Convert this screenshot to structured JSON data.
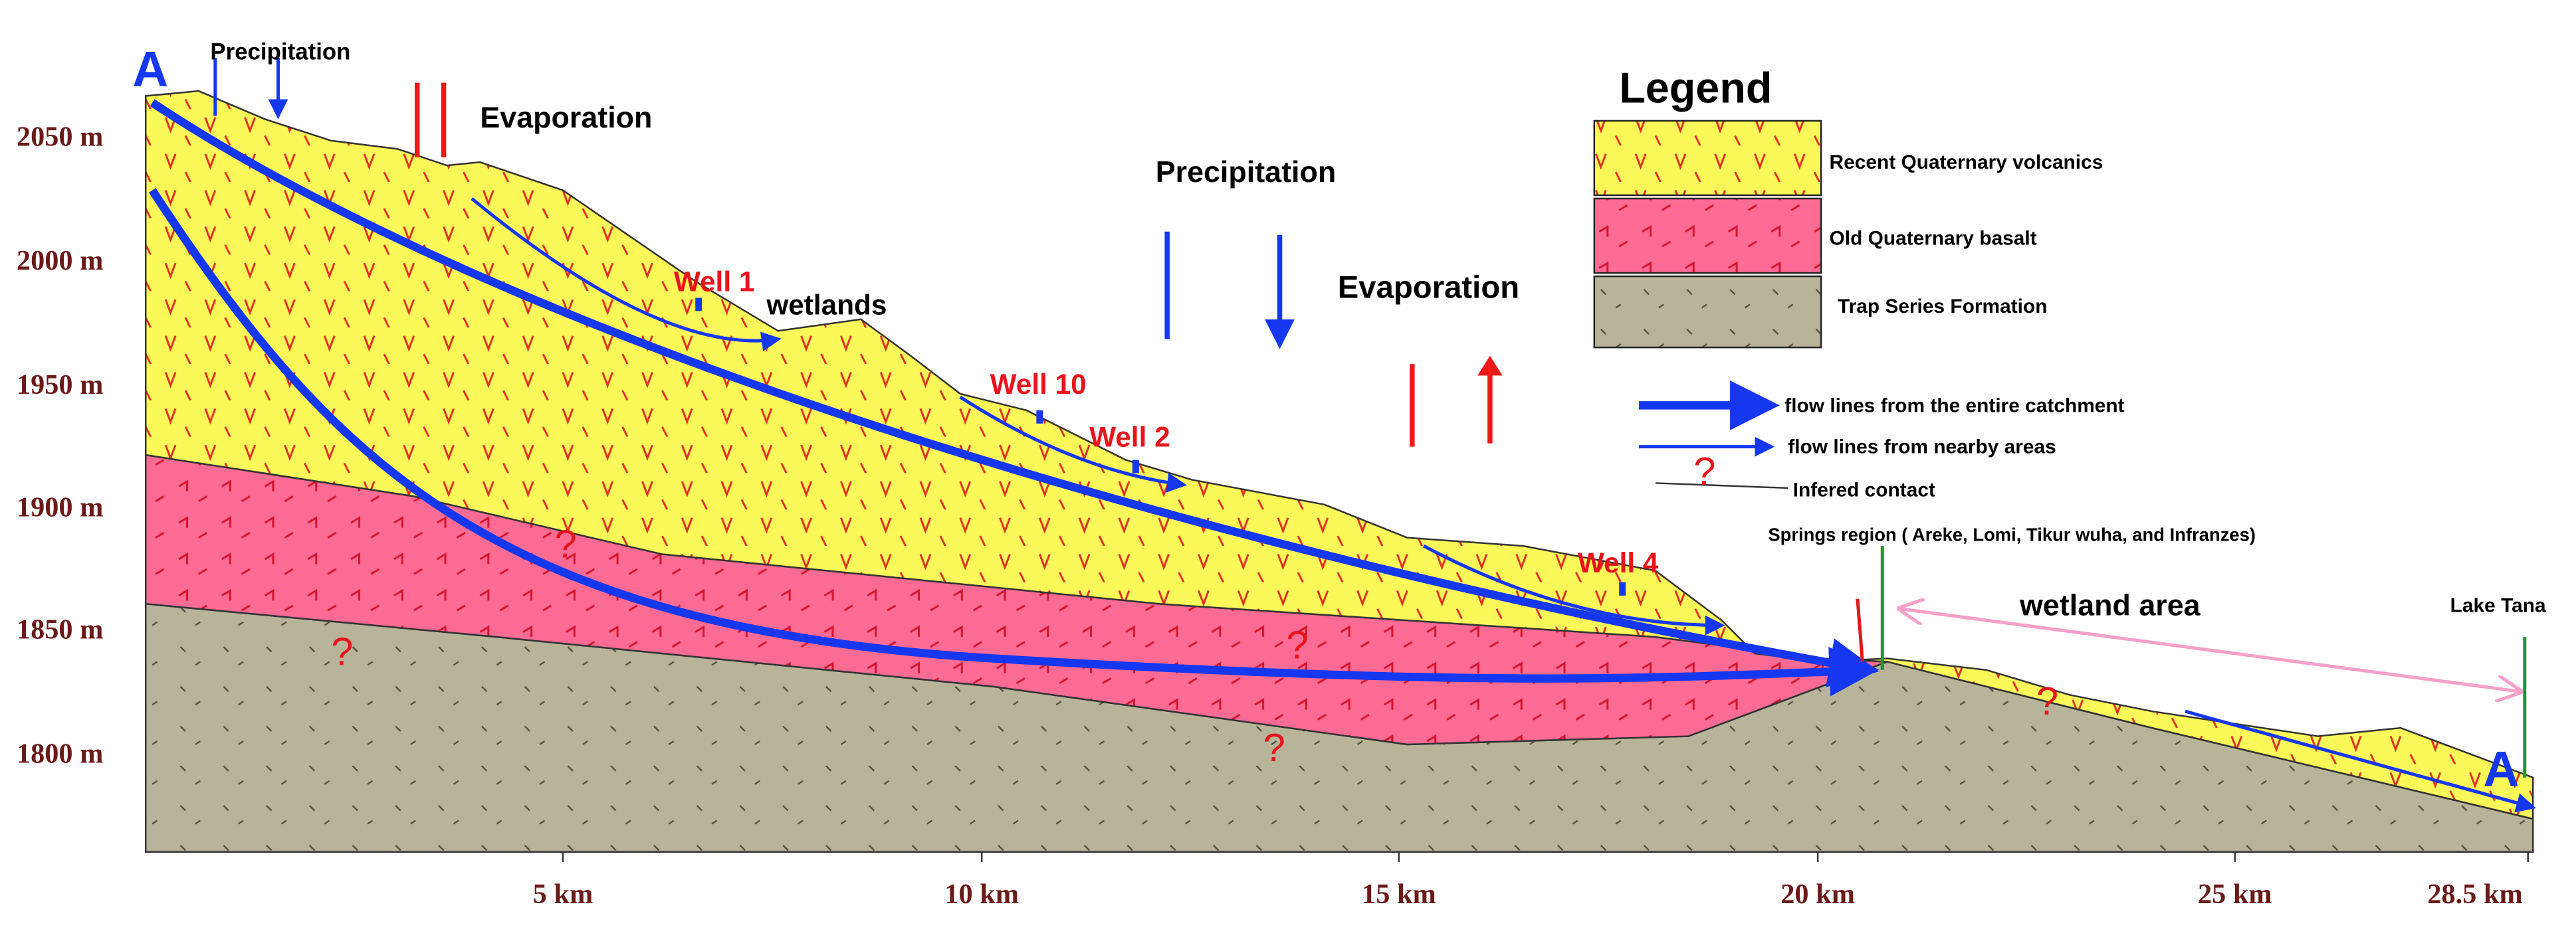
{
  "section_labels": {
    "start": "A",
    "end": "A"
  },
  "y_axis": [
    "2050 m",
    "2000 m",
    "1950 m",
    "1900 m",
    "1850 m",
    "1800 m"
  ],
  "x_axis": [
    "5 km",
    "10 km",
    "15 km",
    "20 km",
    "25 km",
    "28.5 km"
  ],
  "annotations": {
    "precipitation_small": "Precipitation",
    "evaporation_left": "Evaporation",
    "precipitation_large": "Precipitation",
    "evaporation_right": "Evaporation",
    "wetlands": "wetlands",
    "wetland_area": "wetland area",
    "springs": "Springs region ( Areke, Lomi, Tikur wuha, and Infranzes)",
    "lake": "Lake Tana"
  },
  "wells": [
    "Well 1",
    "Well 10",
    "Well 2",
    "Well 4"
  ],
  "contacts": [
    "?",
    "?",
    "?",
    "?",
    "?",
    "?"
  ],
  "legend": {
    "title": "Legend",
    "layers": [
      "Recent Quaternary volcanics",
      "Old Quaternary basalt",
      "Trap Series Formation"
    ],
    "lines": [
      "flow lines from the entire catchment",
      "flow lines from nearby areas",
      "Infered contact"
    ],
    "contact_symbol": "?"
  }
}
